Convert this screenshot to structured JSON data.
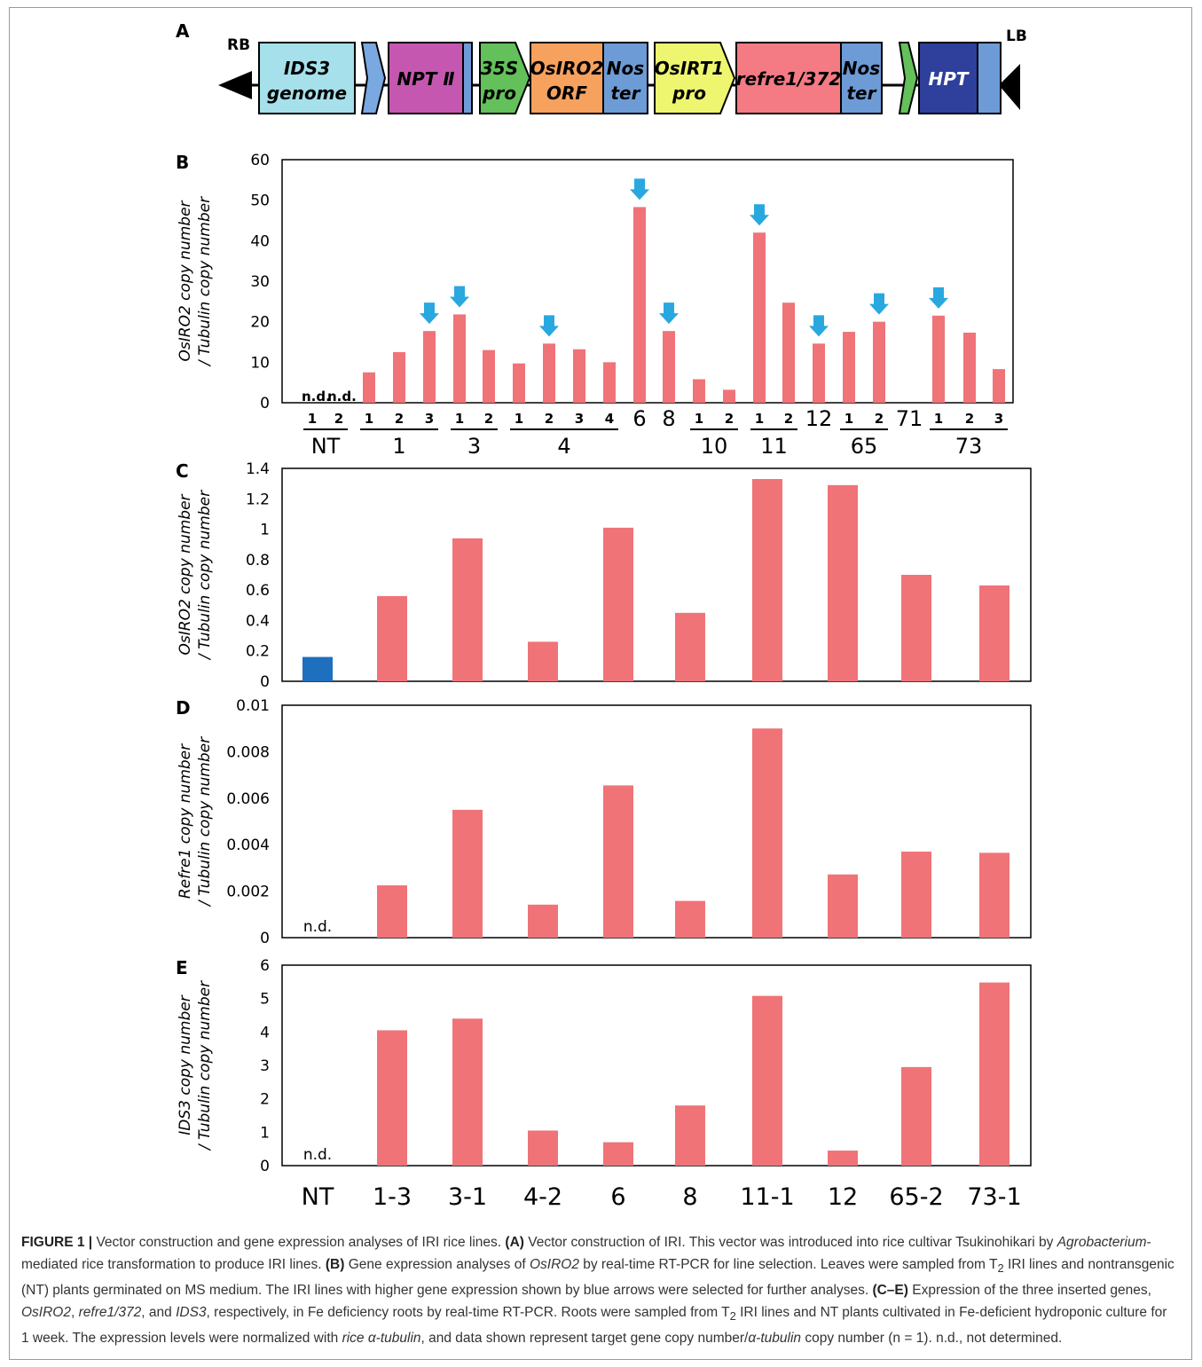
{
  "vector": {
    "panel_letter": "A",
    "rb_label": "RB",
    "lb_label": "LB",
    "elements": [
      {
        "id": "ids3",
        "lines": [
          "IDS3",
          "genome"
        ],
        "color": "#a6e0ea"
      },
      {
        "id": "npt-arrow",
        "lines": [],
        "color": "#7aa8e0"
      },
      {
        "id": "npt2",
        "lines": [
          "NPT Ⅱ"
        ],
        "color": "#c557b0"
      },
      {
        "id": "p35s",
        "lines": [
          "35S",
          "pro"
        ],
        "color": "#63c05a"
      },
      {
        "id": "osiro2",
        "lines": [
          "OsIRO2",
          "ORF"
        ],
        "color": "#f7a15e"
      },
      {
        "id": "noster1",
        "lines": [
          "Nos",
          "ter"
        ],
        "color": "#6d9bd6"
      },
      {
        "id": "osirt1",
        "lines": [
          "OsIRT1",
          "pro"
        ],
        "color": "#eef56f"
      },
      {
        "id": "refre1",
        "lines": [
          "refre1/372"
        ],
        "color": "#f47a84"
      },
      {
        "id": "noster2",
        "lines": [
          "Nos",
          "ter"
        ],
        "color": "#6d9bd6"
      },
      {
        "id": "hpt-arrow",
        "lines": [],
        "color": "#63c05a"
      },
      {
        "id": "hpt",
        "lines": [
          "HPT"
        ],
        "color": "#2e3f9c"
      }
    ]
  },
  "colors": {
    "bar": "#f07378",
    "nt_bar": "#1f6fbf",
    "arrow": "#29a8e0",
    "frame": "#000000"
  },
  "chart_data": [
    {
      "panel": "B",
      "type": "bar",
      "ylabel_line1": "OsIRO2 copy number",
      "ylabel_line2": "/ Tubulin copy number",
      "ylim": [
        0,
        60
      ],
      "yticks": [
        0,
        10,
        20,
        30,
        40,
        50,
        60
      ],
      "groups": [
        {
          "label": "NT",
          "subs": [
            "1",
            "2"
          ],
          "values": [
            null,
            null
          ]
        },
        {
          "label": "1",
          "subs": [
            "1",
            "2",
            "3"
          ],
          "values": [
            7.5,
            12.5,
            17.7
          ]
        },
        {
          "label": "3",
          "subs": [
            "1",
            "2"
          ],
          "values": [
            21.8,
            13
          ]
        },
        {
          "label": "4",
          "subs": [
            "1",
            "2",
            "3",
            "4"
          ],
          "values": [
            9.7,
            14.6,
            13.2,
            10
          ]
        },
        {
          "label": "6",
          "subs": [],
          "values": [
            48.3
          ]
        },
        {
          "label": "8",
          "subs": [],
          "values": [
            17.7
          ]
        },
        {
          "label": "10",
          "subs": [
            "1",
            "2"
          ],
          "values": [
            5.8,
            3.2
          ]
        },
        {
          "label": "11",
          "subs": [
            "1",
            "2"
          ],
          "values": [
            42,
            24.7
          ]
        },
        {
          "label": "12",
          "subs": [],
          "values": [
            14.6
          ]
        },
        {
          "label": "65",
          "subs": [
            "1",
            "2"
          ],
          "values": [
            17.5,
            20
          ]
        },
        {
          "label": "71",
          "subs": [],
          "values": [
            null
          ]
        },
        {
          "label": "73",
          "subs": [
            "1",
            "2",
            "3"
          ],
          "values": [
            21.5,
            17.3,
            8.3
          ]
        }
      ],
      "selected": [
        "1-3",
        "3-1",
        "4-2",
        "6",
        "8",
        "11-1",
        "12",
        "65-2",
        "73-1"
      ],
      "nd_label": "n.d."
    },
    {
      "panel": "C",
      "type": "bar",
      "ylabel_line1": "OsIRO2 copy number",
      "ylabel_line2": "/ Tubulin copy number",
      "ylim": [
        0,
        1.4
      ],
      "yticks": [
        0,
        0.2,
        0.4,
        0.6,
        0.8,
        1,
        1.2,
        1.4
      ],
      "categories": [
        "NT",
        "1-3",
        "3-1",
        "4-2",
        "6",
        "8",
        "11-1",
        "12",
        "65-2",
        "73-1"
      ],
      "values": [
        0.16,
        0.56,
        0.94,
        0.26,
        1.01,
        0.45,
        1.33,
        1.29,
        0.7,
        0.63
      ]
    },
    {
      "panel": "D",
      "type": "bar",
      "ylabel_line1": "Refre1 copy number",
      "ylabel_line2": "/ Tubulin copy number",
      "ylim": [
        0,
        0.01
      ],
      "yticks": [
        0,
        0.002,
        0.004,
        0.006,
        0.008,
        0.01
      ],
      "categories": [
        "NT",
        "1-3",
        "3-1",
        "4-2",
        "6",
        "8",
        "11-1",
        "12",
        "65-2",
        "73-1"
      ],
      "values": [
        null,
        0.00225,
        0.0055,
        0.00142,
        0.00655,
        0.00158,
        0.009,
        0.00272,
        0.0037,
        0.00365
      ],
      "nd_label": "n.d."
    },
    {
      "panel": "E",
      "type": "bar",
      "ylabel_line1": "IDS3 copy number",
      "ylabel_line2": "/ Tubulin copy number",
      "ylim": [
        0,
        6
      ],
      "yticks": [
        0,
        1,
        2,
        3,
        4,
        5,
        6
      ],
      "categories": [
        "NT",
        "1-3",
        "3-1",
        "4-2",
        "6",
        "8",
        "11-1",
        "12",
        "65-2",
        "73-1"
      ],
      "values": [
        null,
        4.05,
        4.4,
        1.05,
        0.7,
        1.8,
        5.08,
        0.45,
        2.95,
        5.48
      ],
      "nd_label": "n.d."
    }
  ],
  "caption": {
    "fig_label": "FIGURE 1 |",
    "a1": "Vector construction and gene expression analyses of IRI rice lines.",
    "a2": "(A)",
    "a3": "Vector construction of IRI. This vector was introduced into rice cultivar Tsukinohikari by",
    "a4": "Agrobacterium",
    "a5": "-mediated rice transformation to produce IRI lines.",
    "b1": "(B)",
    "b2": "Gene expression analyses of",
    "b3": "OsIRO2",
    "b4": "by real-time RT-PCR for line selection. Leaves were sampled from T",
    "b4s": "2",
    "b5": "IRI lines and nontransgenic (NT) plants germinated on MS medium. The IRI lines with higher gene expression shown by blue arrows were selected for further analyses.",
    "c1": "(C–E)",
    "c2": "Expression of the three inserted genes,",
    "c3": "OsIRO2",
    "c4": ",",
    "c5": "refre1/372",
    "c6": ", and",
    "c7": "IDS3",
    "c8": ", respectively, in Fe deficiency roots by real-time RT-PCR. Roots were sampled from T",
    "c8s": "2",
    "c9": "IRI lines and NT plants cultivated in Fe-deficient hydroponic culture for 1 week. The expression levels were normalized with",
    "c10": "rice α-tubulin",
    "c11": ", and data shown represent target gene copy number/",
    "c12": "α-tubulin",
    "c13": "copy number (n = 1). n.d., not determined."
  }
}
